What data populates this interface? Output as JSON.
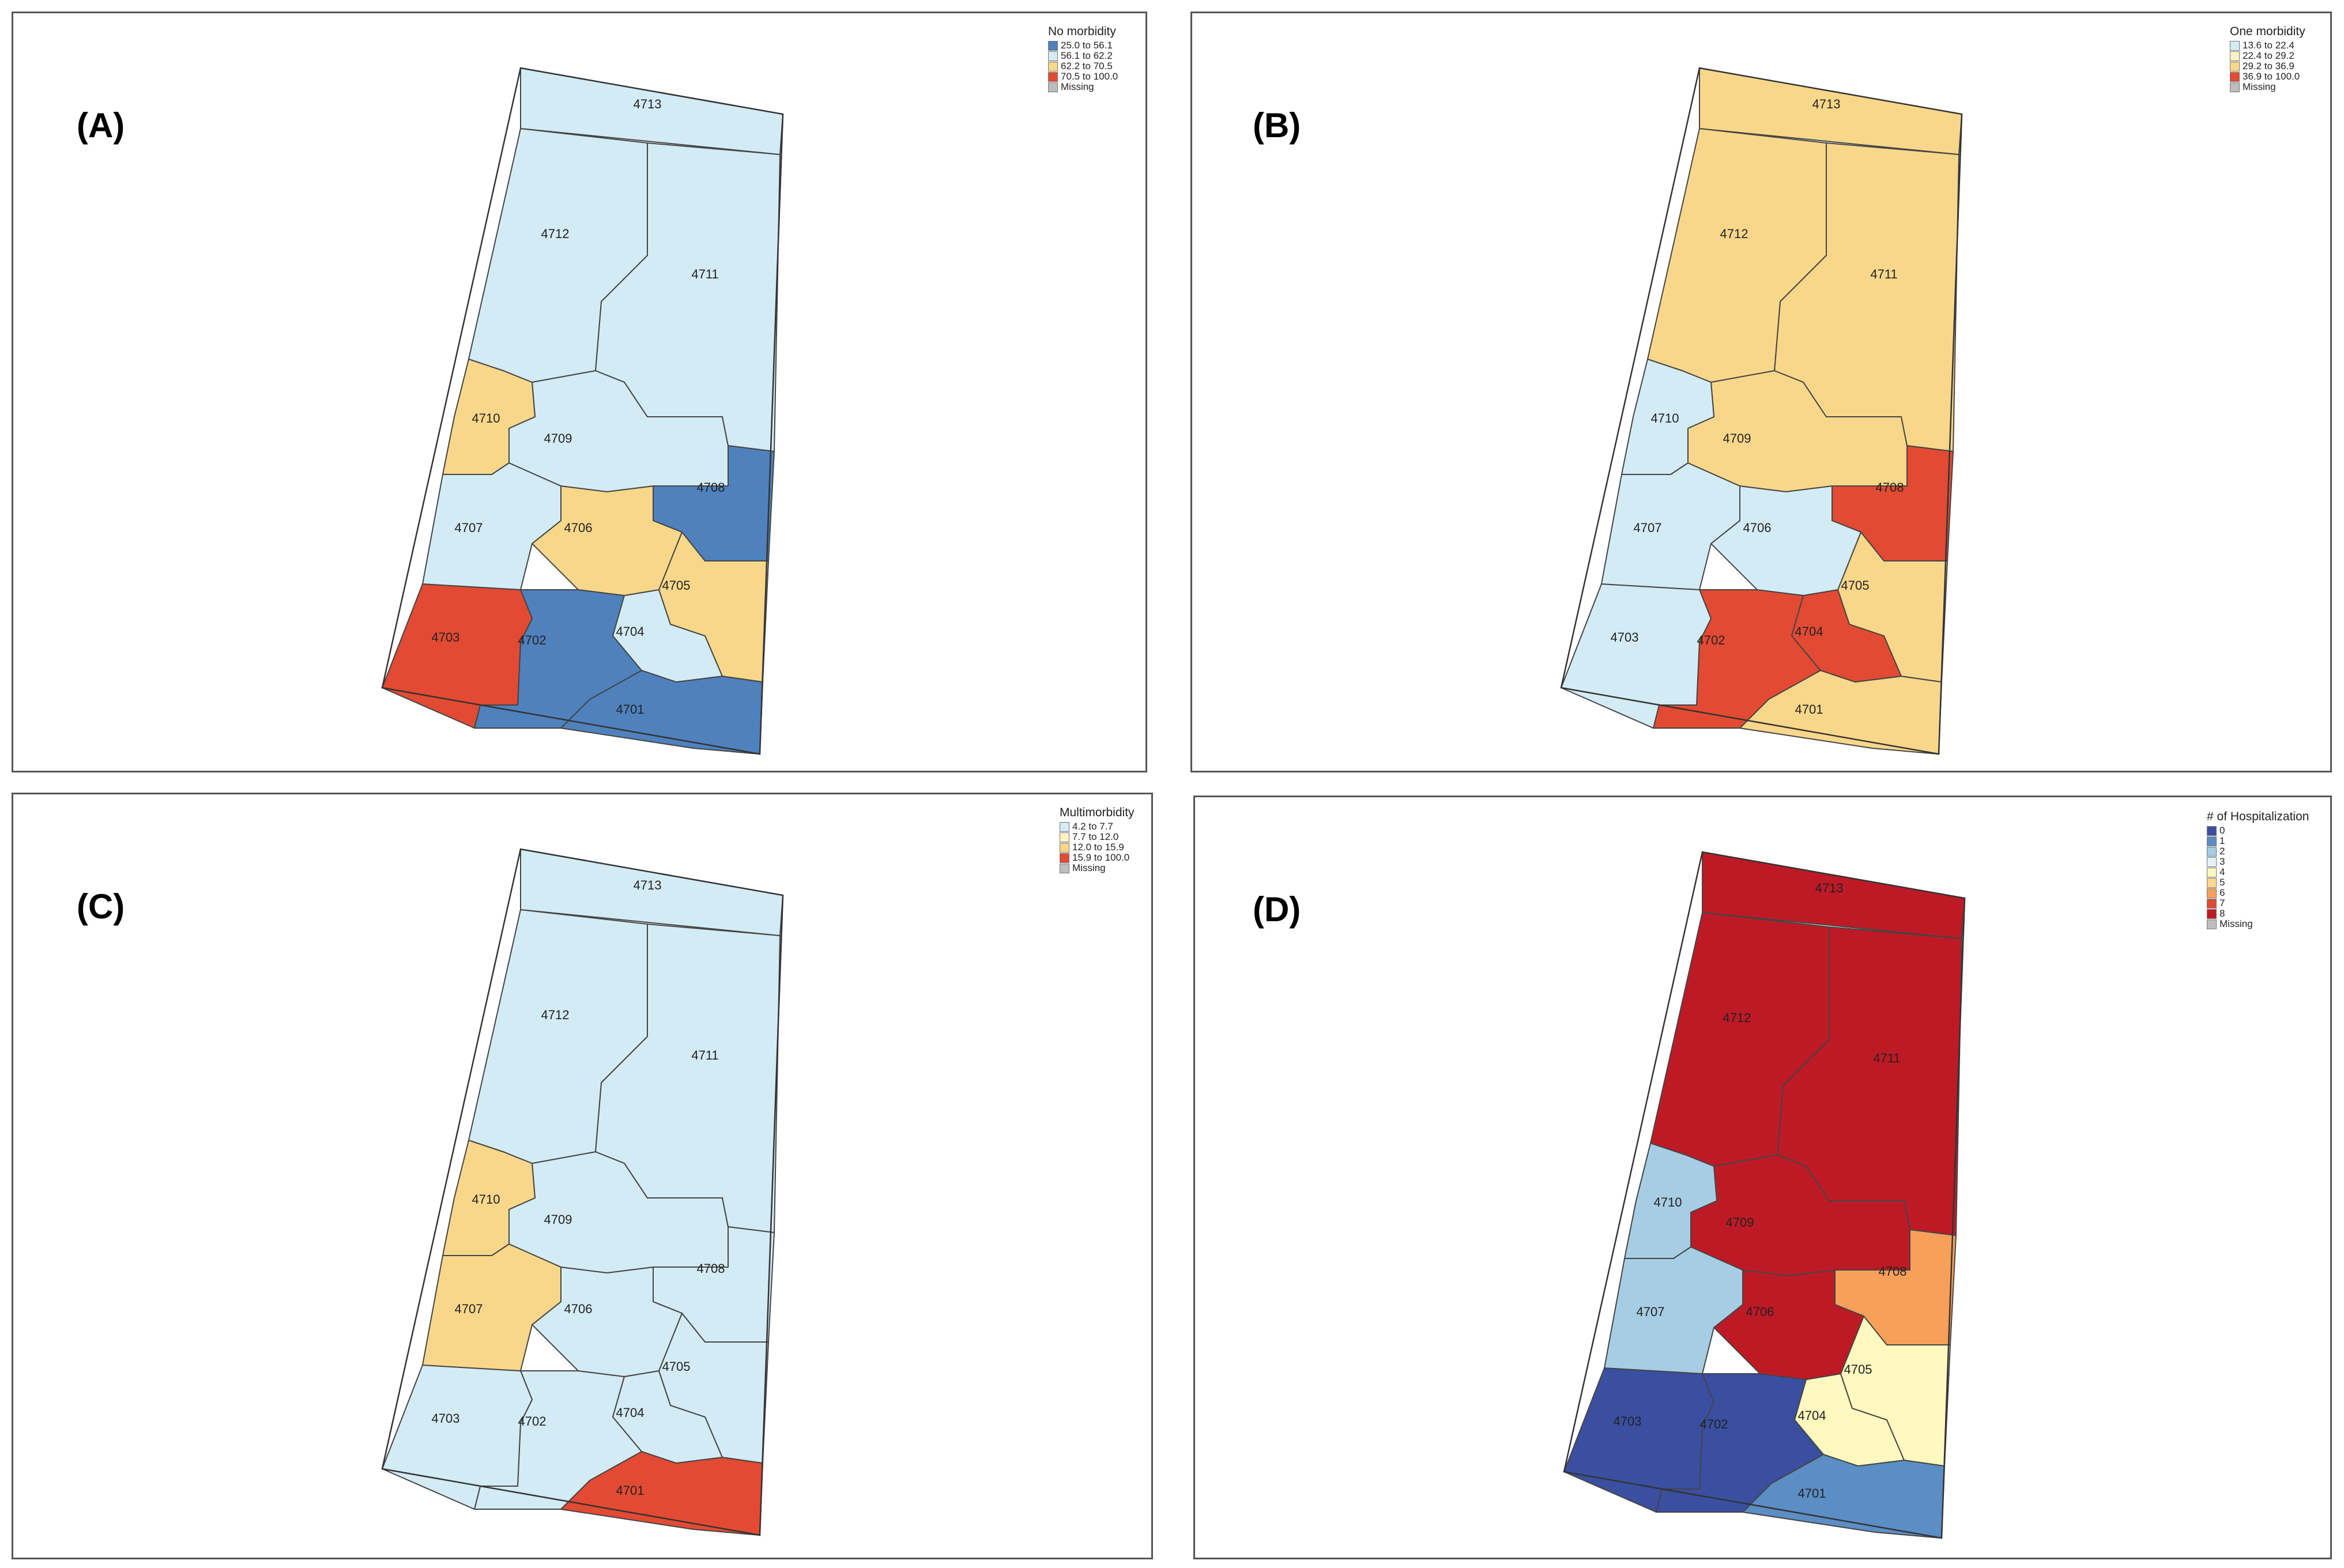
{
  "panels": [
    {
      "label": "(A)",
      "legend_title": "No morbidity",
      "legend": [
        {
          "label": "25.0 to 56.1",
          "color": "#4f81bd"
        },
        {
          "label": "56.1 to 62.2",
          "color": "#d3ebf4"
        },
        {
          "label": "62.2 to 70.5",
          "color": "#f9d78a"
        },
        {
          "label": "70.5 to 100.0",
          "color": "#e34a33"
        },
        {
          "label": "Missing",
          "color": "#bdbdbd"
        }
      ],
      "regions": {
        "4713": 1,
        "4712": 1,
        "4711": 1,
        "4710": 2,
        "4709": 1,
        "4708": 0,
        "4707": 1,
        "4706": 2,
        "4705": 2,
        "4704": 1,
        "4703": 3,
        "4702": 0,
        "4701": 0
      }
    },
    {
      "label": "(B)",
      "legend_title": "One morbidity",
      "legend": [
        {
          "label": "13.6 to 22.4",
          "color": "#d3ebf4"
        },
        {
          "label": "22.4 to 29.2",
          "color": "#fff2c2"
        },
        {
          "label": "29.2 to 36.9",
          "color": "#f9d78a"
        },
        {
          "label": "36.9 to 100.0",
          "color": "#e34a33"
        },
        {
          "label": "Missing",
          "color": "#bdbdbd"
        }
      ],
      "regions": {
        "4713": 2,
        "4712": 2,
        "4711": 2,
        "4710": 0,
        "4709": 2,
        "4708": 3,
        "4707": 0,
        "4706": 0,
        "4705": 2,
        "4704": 3,
        "4703": 0,
        "4702": 3,
        "4701": 2
      }
    },
    {
      "label": "(C)",
      "legend_title": "Multimorbidity",
      "legend": [
        {
          "label": "4.2 to 7.7",
          "color": "#d3ebf4"
        },
        {
          "label": "7.7 to 12.0",
          "color": "#fff2c2"
        },
        {
          "label": "12.0 to 15.9",
          "color": "#f9d78a"
        },
        {
          "label": "15.9 to 100.0",
          "color": "#e34a33"
        },
        {
          "label": "Missing",
          "color": "#bdbdbd"
        }
      ],
      "regions": {
        "4713": 0,
        "4712": 0,
        "4711": 0,
        "4710": 2,
        "4709": 0,
        "4708": 0,
        "4707": 2,
        "4706": 0,
        "4705": 0,
        "4704": 0,
        "4703": 0,
        "4702": 0,
        "4701": 3
      }
    },
    {
      "label": "(D)",
      "legend_title": "# of Hospitalization",
      "legend": [
        {
          "label": "0",
          "color": "#3a4fa0"
        },
        {
          "label": "1",
          "color": "#5b8ec4"
        },
        {
          "label": "2",
          "color": "#a6cde3"
        },
        {
          "label": "3",
          "color": "#e3f2f7"
        },
        {
          "label": "4",
          "color": "#fff8bf"
        },
        {
          "label": "5",
          "color": "#fdd88f"
        },
        {
          "label": "6",
          "color": "#f8a05a"
        },
        {
          "label": "7",
          "color": "#de4b32"
        },
        {
          "label": "8",
          "color": "#be1a26"
        },
        {
          "label": "Missing",
          "color": "#bdbdbd"
        }
      ],
      "regions": {
        "4713": 8,
        "4712": 8,
        "4711": 8,
        "4710": 2,
        "4709": 8,
        "4708": 6,
        "4707": 2,
        "4706": 8,
        "4705": 4,
        "4704": 4,
        "4703": 0,
        "4702": 0,
        "4701": 1
      }
    }
  ],
  "region_labels": [
    "4713",
    "4712",
    "4711",
    "4710",
    "4709",
    "4708",
    "4707",
    "4706",
    "4705",
    "4704",
    "4703",
    "4702",
    "4701"
  ]
}
